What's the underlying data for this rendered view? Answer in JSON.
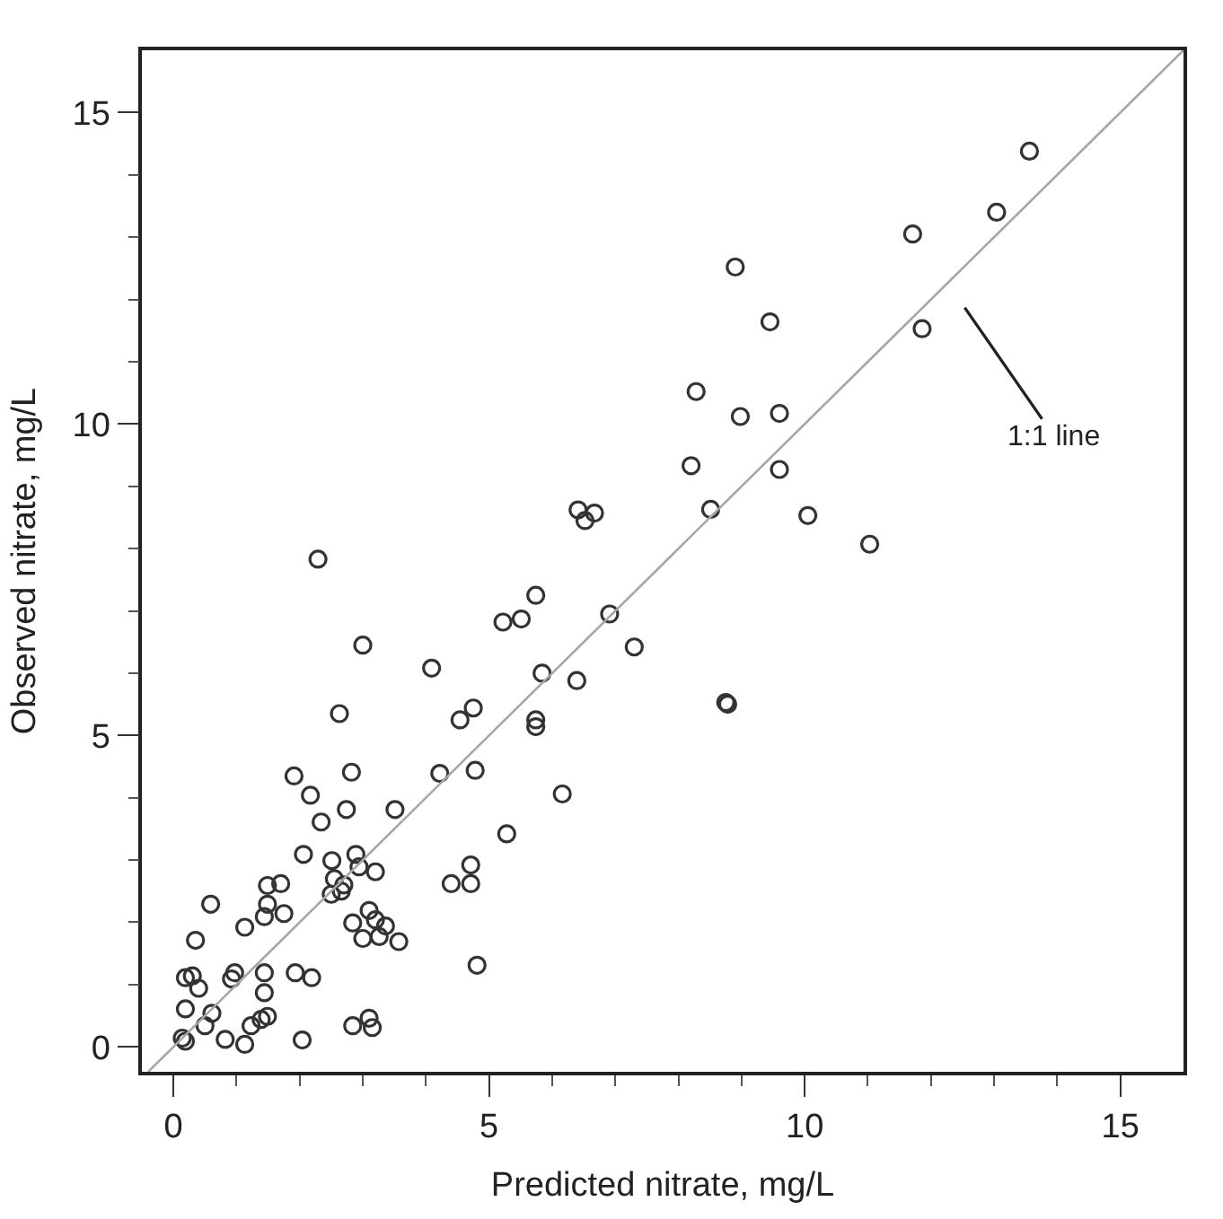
{
  "chart_data": {
    "type": "scatter",
    "xlabel": "Predicted nitrate, mg/L",
    "ylabel": "Observed nitrate, mg/L",
    "xlim": [
      -0.5,
      16
    ],
    "ylim": [
      -0.4,
      16
    ],
    "xticks": [
      0,
      {
        "value": 1,
        "label": null
      },
      {
        "value": 2,
        "label": null
      },
      {
        "value": 3,
        "label": null
      },
      {
        "value": 4,
        "label": null
      },
      5,
      {
        "value": 6,
        "label": null
      },
      {
        "value": 7,
        "label": null
      },
      {
        "value": 8,
        "label": null
      },
      {
        "value": 9,
        "label": null
      },
      10,
      {
        "value": 11,
        "label": null
      },
      {
        "value": 12,
        "label": null
      },
      {
        "value": 13,
        "label": null
      },
      {
        "value": 14,
        "label": null
      },
      15
    ],
    "yticks": [
      0,
      {
        "value": 1,
        "label": null
      },
      {
        "value": 2,
        "label": null
      },
      {
        "value": 3,
        "label": null
      },
      {
        "value": 4,
        "label": null
      },
      5,
      {
        "value": 6,
        "label": null
      },
      {
        "value": 7,
        "label": null
      },
      {
        "value": 8,
        "label": null
      },
      {
        "value": 9,
        "label": null
      },
      10,
      {
        "value": 11,
        "label": null
      },
      {
        "value": 12,
        "label": null
      },
      {
        "value": 13,
        "label": null
      },
      {
        "value": 14,
        "label": null
      },
      15
    ],
    "grid": false,
    "marker": "circle",
    "series": [
      {
        "color": "#333333",
        "x": [
          13.56,
          13.04,
          11.71,
          8.9,
          9.45,
          11.86,
          8.28,
          8.98,
          9.6,
          8.2,
          9.6,
          8.51,
          10.05,
          11.03,
          6.41,
          6.67,
          6.52,
          5.74,
          5.22,
          5.51,
          6.91,
          7.3,
          5.84,
          6.39,
          8.75,
          8.78,
          5.74,
          5.74,
          4.75,
          4.54,
          2.29,
          3.0,
          4.09,
          2.63,
          1.91,
          2.17,
          2.82,
          4.22,
          4.78,
          6.16,
          2.74,
          2.34,
          3.51,
          5.28,
          2.06,
          2.51,
          2.89,
          2.55,
          2.7,
          2.5,
          2.66,
          2.94,
          3.2,
          1.49,
          1.7,
          1.49,
          1.75,
          1.44,
          1.13,
          0.59,
          0.35,
          4.4,
          4.71,
          4.71,
          2.84,
          3.1,
          3.2,
          3.36,
          3.0,
          3.26,
          3.57,
          4.81,
          0.19,
          0.3,
          0.4,
          0.97,
          0.92,
          1.44,
          1.44,
          1.93,
          2.19,
          0.19,
          0.61,
          0.5,
          0.14,
          0.19,
          0.82,
          1.13,
          1.23,
          1.39,
          1.49,
          2.04,
          2.84,
          3.1,
          3.15
        ],
        "values": [
          14.38,
          13.4,
          13.05,
          12.52,
          11.64,
          11.53,
          10.52,
          10.12,
          10.17,
          9.33,
          9.27,
          8.63,
          8.53,
          8.07,
          8.62,
          8.57,
          8.45,
          7.25,
          6.82,
          6.87,
          6.95,
          6.42,
          6.0,
          5.88,
          5.53,
          5.5,
          5.25,
          5.14,
          5.44,
          5.25,
          7.83,
          6.45,
          6.08,
          5.35,
          4.35,
          4.04,
          4.41,
          4.39,
          4.44,
          4.06,
          3.81,
          3.61,
          3.81,
          3.42,
          3.09,
          2.99,
          3.09,
          2.7,
          2.6,
          2.45,
          2.5,
          2.89,
          2.81,
          2.59,
          2.62,
          2.29,
          2.14,
          2.09,
          1.92,
          2.29,
          1.71,
          2.62,
          2.62,
          2.92,
          1.99,
          2.19,
          2.04,
          1.94,
          1.74,
          1.77,
          1.69,
          1.31,
          1.11,
          1.14,
          0.94,
          1.19,
          1.09,
          1.19,
          0.87,
          1.19,
          1.11,
          0.61,
          0.54,
          0.34,
          0.14,
          0.09,
          0.12,
          0.04,
          0.34,
          0.44,
          0.49,
          0.11,
          0.34,
          0.46,
          0.31
        ]
      },
      {
        "type": "line",
        "color": "#a6a6a6",
        "marker": "none",
        "x": [
          -0.4,
          16
        ],
        "values": [
          -0.4,
          16
        ]
      }
    ],
    "annotations": [
      "1:1 line"
    ]
  }
}
